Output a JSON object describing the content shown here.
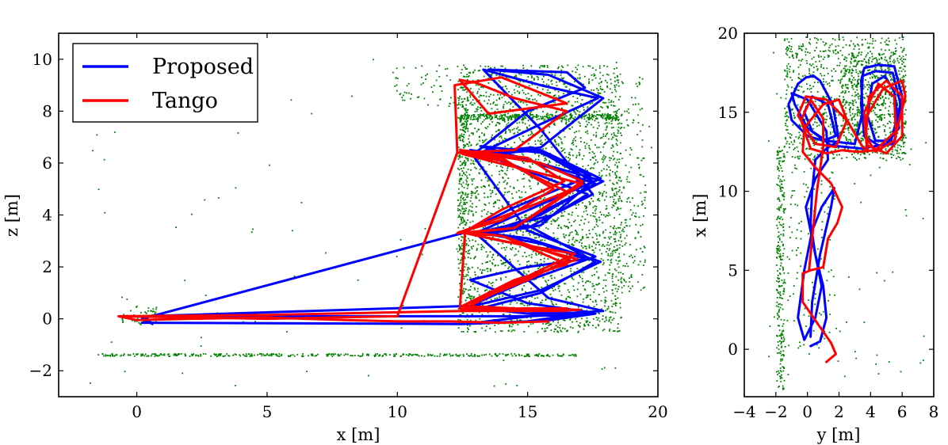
{
  "chart_data": [
    {
      "type": "line",
      "id": "xz",
      "xlabel": "x [m]",
      "ylabel": "z [m]",
      "xlim": [
        -3,
        20
      ],
      "ylim": [
        -3,
        11
      ],
      "xticks": [
        0,
        5,
        10,
        15,
        20
      ],
      "yticks": [
        -2,
        0,
        2,
        4,
        6,
        8,
        10
      ],
      "xtick_labels": [
        "0",
        "5",
        "10",
        "15",
        "20"
      ],
      "ytick_labels": [
        "−2",
        "0",
        "2",
        "4",
        "6",
        "8",
        "10"
      ],
      "grid": false,
      "legend_position": "top-left",
      "legend": [
        {
          "label": "Proposed",
          "color": "#0000ff"
        },
        {
          "label": "Tango",
          "color": "#ff0000"
        }
      ],
      "point_cloud": {
        "color": "#008000",
        "regions": [
          {
            "x": [
              12.3,
              18.6
            ],
            "y": [
              -0.5,
              9.8
            ],
            "n": 2600
          },
          {
            "x": [
              12.4,
              18.5
            ],
            "y": [
              7.7,
              7.9
            ],
            "n": 320
          },
          {
            "x": [
              -1.5,
              17.0
            ],
            "y": [
              -1.42,
              -1.32
            ],
            "n": 380
          },
          {
            "x": [
              -0.6,
              0.8
            ],
            "y": [
              -0.2,
              0.6
            ],
            "n": 45
          },
          {
            "x": [
              9.8,
              12.4
            ],
            "y": [
              8.2,
              9.8
            ],
            "n": 60
          },
          {
            "x": [
              18.2,
              19.5
            ],
            "y": [
              1.0,
              9.4
            ],
            "n": 200
          },
          {
            "x": [
              12.3,
              12.7
            ],
            "y": [
              -0.3,
              9.5
            ],
            "n": 250
          },
          {
            "x": [
              -2.5,
              20.0
            ],
            "y": [
              -2.6,
              10.3
            ],
            "n": 90
          }
        ]
      },
      "series": [
        {
          "name": "Proposed",
          "color": "#0000ff",
          "x": [
            0.2,
            12.5,
            15.0,
            17.4,
            15.0,
            12.8,
            15.0,
            17.2,
            15.5,
            13.0,
            15.0,
            17.8,
            15.5,
            12.9,
            15.0,
            17.6,
            15.5,
            13.0,
            15.5,
            17.9,
            15.8,
            13.0,
            16.0,
            17.3,
            14.5,
            12.8,
            14.8,
            17.6,
            15.5,
            13.0,
            14.5,
            17.9,
            15.8,
            13.2,
            15.5,
            17.4,
            14.5,
            12.5,
            0.2,
            0.6,
            0.3,
            12.8,
            14.8,
            17.6,
            15.0,
            12.9,
            15.5,
            17.8,
            15.5,
            13.0,
            15.0,
            17.5,
            15.5,
            13.3,
            15.5,
            17.7,
            15.5,
            13.0,
            15.5,
            17.9,
            15.8,
            13.5,
            16.5,
            17.2,
            15.0,
            13.0,
            15.2,
            17.5,
            15.5,
            13.0,
            15.0,
            17.6,
            15.5,
            13.2,
            15.0,
            17.4,
            15.0,
            12.5,
            0.3
          ],
          "y": [
            -0.15,
            -0.2,
            -0.1,
            0.25,
            0.6,
            1.5,
            2.0,
            2.3,
            2.9,
            3.35,
            3.1,
            2.2,
            1.1,
            0.5,
            0.3,
            0.2,
            -0.1,
            -0.15,
            0.15,
            0.3,
            0.8,
            3.3,
            4.0,
            4.8,
            5.9,
            6.5,
            6.2,
            5.2,
            4.0,
            3.2,
            3.6,
            5.3,
            5.9,
            6.65,
            6.4,
            5.5,
            4.3,
            3.3,
            0.0,
            -0.2,
            0.1,
            0.5,
            1.4,
            2.4,
            3.4,
            6.3,
            6.5,
            5.4,
            4.4,
            3.3,
            3.5,
            4.8,
            7.3,
            9.6,
            9.0,
            8.5,
            7.5,
            6.3,
            6.6,
            8.5,
            9.4,
            9.6,
            9.5,
            8.9,
            8.0,
            6.4,
            6.6,
            5.3,
            3.6,
            3.2,
            3.6,
            2.2,
            1.0,
            0.4,
            0.2,
            0.2,
            0.1,
            0.1,
            0.1
          ]
        },
        {
          "name": "Tango",
          "color": "#ff0000",
          "x": [
            -0.7,
            5.0,
            10.0,
            12.5,
            15.0,
            16.5,
            15.0,
            12.5,
            14.0,
            16.9,
            15.0,
            12.4,
            14.0,
            16.5,
            14.5,
            12.5,
            14.5,
            17.0,
            15.0,
            12.4,
            14.5,
            16.8,
            14.0,
            12.6,
            14.5,
            17.1,
            15.5,
            12.5,
            14.0,
            16.5,
            15.0,
            12.3,
            14.5,
            17.1,
            15.5,
            12.4,
            15.0,
            16.4,
            14.0,
            12.5,
            14.0,
            16.6,
            15.0,
            12.5,
            14.0,
            16.5,
            14.0,
            12.4,
            12.6,
            14.0,
            16.0,
            14.0,
            12.3,
            12.2,
            14.0,
            16.5,
            13.5,
            12.4,
            13.0,
            14.5,
            16.5,
            14.5,
            12.3,
            10.0,
            5.0,
            -0.7,
            0.0,
            2.0,
            5.0,
            8.0,
            10.0,
            12.0,
            14.0,
            15.8
          ],
          "y": [
            0.1,
            0.15,
            0.25,
            0.3,
            0.4,
            0.4,
            0.35,
            0.3,
            1.2,
            2.3,
            2.8,
            3.35,
            3.2,
            2.1,
            1.5,
            0.5,
            0.4,
            0.35,
            0.3,
            0.3,
            1.4,
            2.5,
            3.0,
            3.3,
            3.5,
            5.2,
            5.6,
            6.35,
            6.1,
            4.9,
            4.3,
            3.3,
            3.5,
            5.3,
            6.0,
            6.5,
            6.2,
            5.3,
            4.2,
            3.3,
            3.2,
            2.3,
            1.5,
            0.5,
            0.3,
            0.3,
            0.3,
            0.4,
            3.4,
            3.8,
            5.0,
            6.2,
            6.4,
            9.0,
            9.3,
            8.3,
            7.9,
            9.2,
            9.1,
            8.5,
            8.0,
            6.5,
            6.4,
            0.1,
            0.0,
            0.1,
            -0.05,
            0.0,
            0.05,
            -0.05,
            -0.1,
            -0.1,
            -0.15,
            -0.1
          ]
        }
      ]
    },
    {
      "type": "line",
      "id": "yx",
      "xlabel": "y [m]",
      "ylabel": "x [m]",
      "xlim": [
        -4,
        8
      ],
      "ylim": [
        -3,
        20
      ],
      "xticks": [
        -4,
        -2,
        0,
        2,
        4,
        6,
        8
      ],
      "yticks": [
        0,
        5,
        10,
        15,
        20
      ],
      "xtick_labels": [
        "−4",
        "−2",
        "0",
        "2",
        "4",
        "6",
        "8"
      ],
      "ytick_labels": [
        "0",
        "5",
        "10",
        "15",
        "20"
      ],
      "grid": false,
      "point_cloud": {
        "color": "#008000",
        "regions": [
          {
            "x": [
              -1.5,
              6.2
            ],
            "y": [
              12.0,
              19.8
            ],
            "n": 900
          },
          {
            "x": [
              2.2,
              6.2
            ],
            "y": [
              12.4,
              18.8
            ],
            "n": 500
          },
          {
            "x": [
              -2.0,
              -1.5
            ],
            "y": [
              -2.5,
              13.0
            ],
            "n": 260
          },
          {
            "x": [
              -1.6,
              1.8
            ],
            "y": [
              0.0,
              12.0
            ],
            "n": 120
          },
          {
            "x": [
              -2.5,
              7.5
            ],
            "y": [
              -2.0,
              19.5
            ],
            "n": 80
          }
        ]
      },
      "series": [
        {
          "name": "Proposed",
          "color": "#0000ff",
          "x": [
            0.2,
            0.8,
            1.2,
            1.0,
            0.5,
            0.2,
            0.3,
            0.5,
            1.2,
            2.0,
            1.6,
            0.8,
            0.4,
            -0.1,
            -0.6,
            -1.2,
            -1.0,
            0.0,
            1.0,
            1.8,
            1.3,
            0.3,
            -0.2,
            0.3,
            1.2,
            3.0,
            3.5,
            3.4,
            3.6,
            4.5,
            5.5,
            6.0,
            5.5,
            4.5,
            3.6,
            3.4,
            3.5,
            4.3,
            5.4,
            5.9,
            5.3,
            4.3,
            3.8,
            4.1,
            4.9,
            5.5,
            5.8,
            5.0,
            3.5,
            1.5,
            0.0,
            -0.8,
            -1.0,
            0.0,
            1.2,
            1.3,
            0.5,
            -0.1,
            0.3,
            0.9,
            0.5,
            -0.2,
            -0.6,
            -0.2,
            0.3,
            0.9,
            1.7,
            1.5,
            0.8,
            0.3,
            0.2
          ],
          "y": [
            0.2,
            0.5,
            2.0,
            4.0,
            6.0,
            8.0,
            10.0,
            12.0,
            12.7,
            13.2,
            15.5,
            17.0,
            17.3,
            17.2,
            16.8,
            15.5,
            14.5,
            13.5,
            13.2,
            13.5,
            15.5,
            16.0,
            15.0,
            13.8,
            13.2,
            13.0,
            15.0,
            17.0,
            17.8,
            18.0,
            17.9,
            16.0,
            13.0,
            12.9,
            13.5,
            15.5,
            17.3,
            17.6,
            17.5,
            15.5,
            13.2,
            13.2,
            14.8,
            16.8,
            17.3,
            16.3,
            14.0,
            13.0,
            12.7,
            12.9,
            14.0,
            15.5,
            16.2,
            15.8,
            13.8,
            12.0,
            10.8,
            9.0,
            7.0,
            4.0,
            2.0,
            0.6,
            2.0,
            5.0,
            7.5,
            9.0,
            10.2,
            9.0,
            6.0,
            3.0,
            0.8
          ]
        },
        {
          "name": "Tango",
          "color": "#ff0000",
          "x": [
            1.2,
            1.8,
            1.5,
            0.8,
            -0.3,
            -0.3,
            0.2,
            1.0,
            1.3,
            1.9,
            2.2,
            1.5,
            0.5,
            -0.3,
            -0.2,
            1.0,
            2.0,
            2.5,
            1.8,
            0.5,
            -0.6,
            -0.1,
            1.2,
            2.5,
            3.5,
            3.8,
            3.6,
            4.8,
            6.0,
            6.2,
            5.5,
            4.3,
            3.7,
            3.9,
            5.0,
            6.0,
            6.0,
            5.0,
            3.8,
            3.6,
            4.5,
            5.5,
            5.6,
            4.3,
            3.2,
            2.2,
            1.2,
            0.2,
            -0.4,
            0.2,
            1.0,
            1.0,
            0.6,
            0.3,
            0.1
          ],
          "y": [
            -0.8,
            -0.3,
            0.4,
            1.4,
            3.0,
            4.8,
            5.0,
            5.2,
            7.0,
            8.0,
            9.0,
            10.5,
            11.5,
            12.5,
            14.0,
            15.5,
            15.8,
            14.5,
            12.8,
            13.0,
            14.8,
            16.0,
            15.8,
            14.5,
            12.8,
            12.5,
            14.5,
            16.5,
            17.0,
            16.0,
            13.2,
            12.5,
            13.5,
            16.0,
            17.0,
            16.0,
            13.5,
            12.4,
            12.9,
            15.0,
            16.8,
            16.0,
            13.8,
            12.6,
            12.5,
            12.6,
            12.4,
            12.7,
            14.5,
            15.8,
            14.6,
            12.8,
            10.0,
            7.0,
            5.0
          ]
        }
      ]
    }
  ]
}
